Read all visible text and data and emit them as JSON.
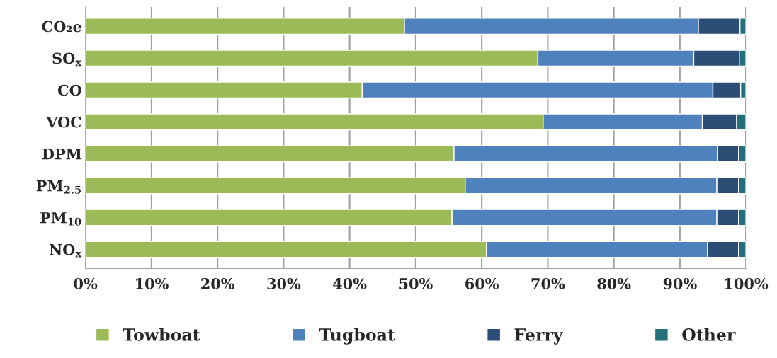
{
  "chart_data": {
    "type": "bar",
    "orientation": "horizontal",
    "stacked": true,
    "categories": [
      "CO₂e",
      "SO$_{x}$",
      "CO",
      "VOC",
      "DPM",
      "PM$_{2.5}$",
      "PM$_{10}$",
      "NO$_{x}$"
    ],
    "series": [
      {
        "name": "Towboat",
        "color": "#9bbb59",
        "values": [
          48.3,
          68.5,
          41.9,
          69.3,
          55.8,
          57.5,
          55.5,
          60.7
        ]
      },
      {
        "name": "Tugboat",
        "color": "#4f81bd",
        "values": [
          44.5,
          23.6,
          53.1,
          24.1,
          39.9,
          38.1,
          40.1,
          33.5
        ]
      },
      {
        "name": "Ferry",
        "color": "#2c4d75",
        "values": [
          6.3,
          6.9,
          4.2,
          5.2,
          3.2,
          3.3,
          3.3,
          4.7
        ]
      },
      {
        "name": "Other",
        "color": "#24707a",
        "values": [
          0.9,
          1.0,
          0.8,
          1.4,
          1.1,
          1.1,
          1.1,
          1.1
        ]
      }
    ],
    "xlim": [
      0,
      100
    ],
    "xticks": [
      {
        "value": 0,
        "label": "0%"
      },
      {
        "value": 10,
        "label": "10%"
      },
      {
        "value": 20,
        "label": "20%"
      },
      {
        "value": 30,
        "label": "30%"
      },
      {
        "value": 40,
        "label": "40%"
      },
      {
        "value": 50,
        "label": "50%"
      },
      {
        "value": 60,
        "label": "60%"
      },
      {
        "value": 70,
        "label": "70%"
      },
      {
        "value": 80,
        "label": "80%"
      },
      {
        "value": 90,
        "label": "90%"
      },
      {
        "value": 100,
        "label": "100%"
      }
    ],
    "grid": "x",
    "legend": "bottom"
  }
}
